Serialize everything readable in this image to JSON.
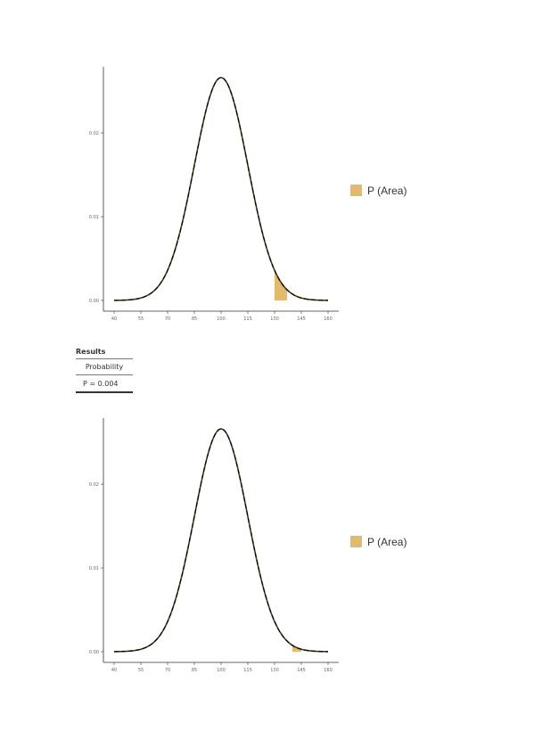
{
  "chart_data": [
    {
      "type": "area",
      "distribution": "normal",
      "mean": 100,
      "sd": 15,
      "xlim": [
        40,
        160
      ],
      "ylim": [
        0,
        0.0265
      ],
      "x_ticks": [
        40,
        55,
        70,
        85,
        100,
        115,
        130,
        145,
        160
      ],
      "x_tick_labels": [
        "40",
        "55",
        "70",
        "85",
        "100",
        "115",
        "130",
        "145",
        "160"
      ],
      "y_ticks": [
        0,
        0.01,
        0.02
      ],
      "y_tick_labels": [
        "0.00",
        "0.01",
        "0.02"
      ],
      "shaded_region": [
        130,
        137
      ],
      "legend": {
        "label": "P (Area)",
        "color": "#e1bb6b",
        "position": "right"
      },
      "grid": false
    },
    {
      "type": "area",
      "distribution": "normal",
      "mean": 100,
      "sd": 15,
      "xlim": [
        40,
        160
      ],
      "ylim": [
        0,
        0.0265
      ],
      "x_ticks": [
        40,
        55,
        70,
        85,
        100,
        115,
        130,
        145,
        160
      ],
      "x_tick_labels": [
        "40",
        "55",
        "70",
        "85",
        "100",
        "115",
        "130",
        "145",
        "160"
      ],
      "y_ticks": [
        0,
        0.01,
        0.02
      ],
      "y_tick_labels": [
        "0.00",
        "0.01",
        "0.02"
      ],
      "shaded_region": [
        140,
        145
      ],
      "legend": {
        "label": "P (Area)",
        "color": "#e1bb6b",
        "position": "right"
      },
      "grid": false
    }
  ],
  "results": {
    "title": "Results",
    "column_header": "Probability",
    "value": "P = 0.004"
  }
}
